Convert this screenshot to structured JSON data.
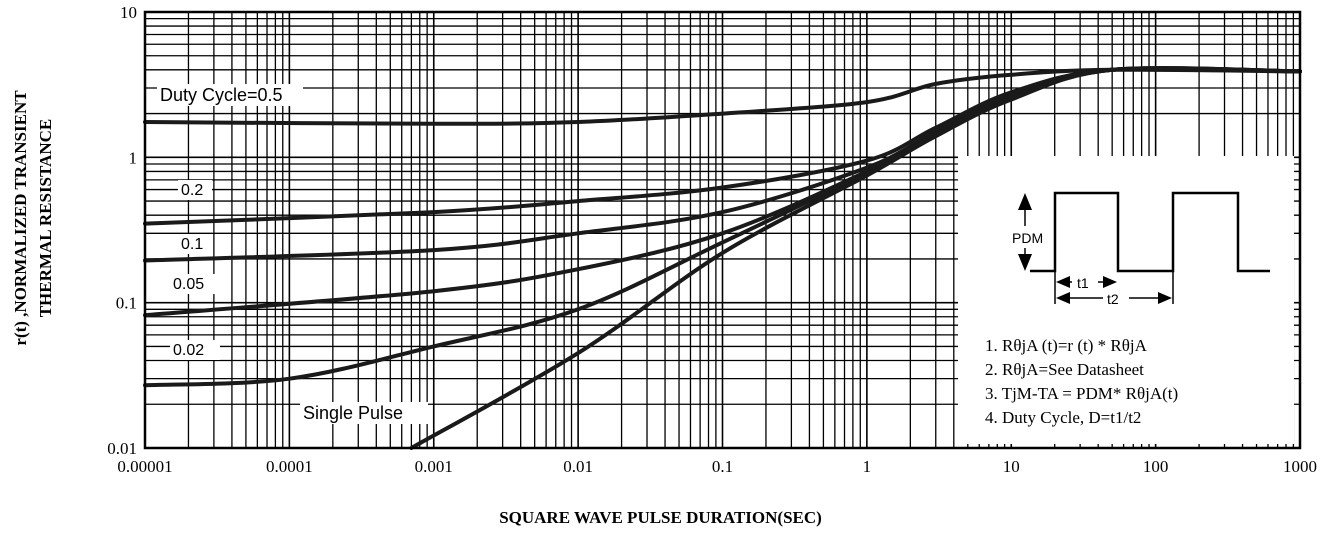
{
  "chart_data": {
    "type": "line",
    "xscale": "log",
    "yscale": "log",
    "xlim": [
      1e-05,
      1000
    ],
    "ylim": [
      0.01,
      10
    ],
    "grid": true,
    "x_ticks": [
      "0.00001",
      "0.0001",
      "0.001",
      "0.01",
      "0.1",
      "1",
      "10",
      "100",
      "1000"
    ],
    "y_ticks": [
      "10",
      "1",
      "0.1",
      "0.01"
    ],
    "xlabel": "SQUARE WAVE PULSE DURATION(SEC)",
    "ylabel_line1": "r(t) ,NORMALIZED TRANSIENT",
    "ylabel_line2": "THERMAL RESISTANCE",
    "series": [
      {
        "name": "Duty Cycle=0.5",
        "points": [
          [
            1e-05,
            1.75
          ],
          [
            0.001,
            1.7
          ],
          [
            0.01,
            1.75
          ],
          [
            0.1,
            2.0
          ],
          [
            1,
            2.4
          ],
          [
            3,
            3.2
          ],
          [
            10,
            3.7
          ],
          [
            50,
            4.0
          ],
          [
            1000,
            3.9
          ]
        ]
      },
      {
        "name": "0.2",
        "points": [
          [
            1e-05,
            0.35
          ],
          [
            0.001,
            0.42
          ],
          [
            0.01,
            0.5
          ],
          [
            0.1,
            0.62
          ],
          [
            1,
            0.95
          ],
          [
            3,
            1.6
          ],
          [
            10,
            2.8
          ],
          [
            50,
            4.0
          ],
          [
            1000,
            3.9
          ]
        ]
      },
      {
        "name": "0.1",
        "points": [
          [
            1e-05,
            0.195
          ],
          [
            0.001,
            0.23
          ],
          [
            0.01,
            0.3
          ],
          [
            0.1,
            0.42
          ],
          [
            1,
            0.85
          ],
          [
            3,
            1.5
          ],
          [
            10,
            2.7
          ],
          [
            50,
            4.0
          ],
          [
            1000,
            3.9
          ]
        ]
      },
      {
        "name": "0.05",
        "points": [
          [
            1e-05,
            0.082
          ],
          [
            0.001,
            0.12
          ],
          [
            0.01,
            0.17
          ],
          [
            0.1,
            0.3
          ],
          [
            1,
            0.8
          ],
          [
            3,
            1.45
          ],
          [
            10,
            2.6
          ],
          [
            50,
            4.0
          ],
          [
            1000,
            3.9
          ]
        ]
      },
      {
        "name": "0.02",
        "points": [
          [
            1e-05,
            0.027
          ],
          [
            0.0001,
            0.03
          ],
          [
            0.001,
            0.05
          ],
          [
            0.01,
            0.09
          ],
          [
            0.1,
            0.26
          ],
          [
            1,
            0.78
          ],
          [
            3,
            1.4
          ],
          [
            10,
            2.55
          ],
          [
            50,
            4.0
          ],
          [
            1000,
            3.9
          ]
        ]
      },
      {
        "name": "Single Pulse",
        "points": [
          [
            0.0007,
            0.01
          ],
          [
            0.01,
            0.045
          ],
          [
            0.1,
            0.22
          ],
          [
            1,
            0.75
          ],
          [
            3,
            1.4
          ],
          [
            10,
            2.5
          ],
          [
            50,
            4.0
          ],
          [
            1000,
            3.9
          ]
        ]
      }
    ],
    "inset": {
      "pdm_label": "PDM",
      "t1_label": "t1",
      "t2_label": "t2",
      "notes": [
        "1. RθjA (t)=r (t) * RθjA",
        "2. RθjA=See Datasheet",
        "3. TjM-TA = PDM* RθjA(t)",
        "4. Duty Cycle, D=t1/t2"
      ]
    }
  }
}
